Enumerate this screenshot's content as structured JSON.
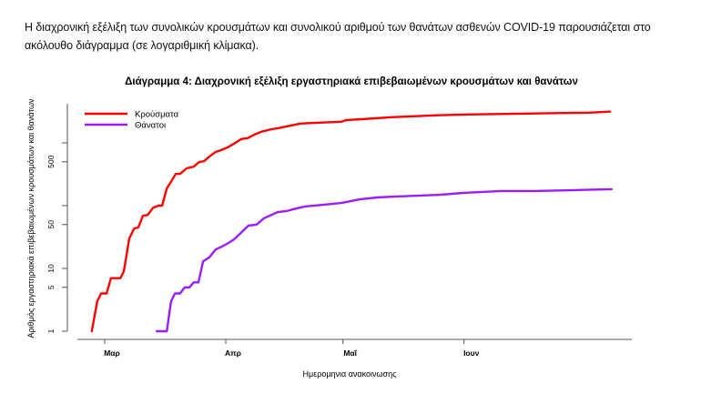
{
  "intro_text": "Η διαχρονική εξέλιξη των συνολικών κρουσμάτων και συνολικού αριθμού των θανάτων ασθενών COVID-19 παρουσιάζεται στο ακόλουθο διάγραμμα (σε λογαριθμική κλίμακα).",
  "chart_data": {
    "type": "line",
    "title": "Διάγραμμα 4: Διαχρονική εξέλιξη εργαστηριακά επιβεβαιωμένων κρουσμάτων και θανάτων",
    "xlabel": "Ημερομηνια ανακοινωσης",
    "ylabel": "Αριθμός εργαστηριακά επιβεβαιωμένων κρουσμάτων και θανάτων",
    "x_units": "days since 1 March",
    "yscale": "log",
    "ylim": [
      1,
      5000
    ],
    "xlim": [
      -7,
      135
    ],
    "x_ticks": [
      {
        "value": 0,
        "label": "Μαρ"
      },
      {
        "value": 31,
        "label": "Απρ"
      },
      {
        "value": 61,
        "label": "Μαΐ"
      },
      {
        "value": 92,
        "label": "Ιουν"
      }
    ],
    "y_ticks": [
      {
        "value": 1,
        "label": "1"
      },
      {
        "value": 5,
        "label": "5"
      },
      {
        "value": 10,
        "label": "10"
      },
      {
        "value": 50,
        "label": "50"
      },
      {
        "value": 100,
        "label": ""
      },
      {
        "value": 500,
        "label": "500"
      },
      {
        "value": 1000,
        "label": ""
      }
    ],
    "grid": false,
    "legend_position": "top-left",
    "series": [
      {
        "name": "Κρούσματα",
        "color": "#ff0000",
        "x": [
          -3.3,
          -1.9,
          -0.9,
          0.5,
          1.6,
          4,
          4.9,
          6.3,
          7.5,
          8.6,
          9.8,
          11,
          12.4,
          13.8,
          14.7,
          15.9,
          16.8,
          18.2,
          19.3,
          21,
          22.8,
          24.2,
          25.4,
          26.8,
          28.4,
          29.8,
          31.5,
          33.1,
          35,
          36.6,
          38.5,
          40.1,
          42.7,
          44.3,
          50.1,
          54.1,
          60.6,
          61.8,
          65.7,
          73.4,
          85.1,
          92.8,
          108.4,
          124,
          129.4
        ],
        "y": [
          1,
          3,
          4,
          4,
          7,
          7,
          9,
          30,
          43,
          45,
          69,
          71,
          93,
          100,
          100,
          188,
          230,
          320,
          320,
          393,
          418,
          495,
          510,
          604,
          716,
          765,
          848,
          971,
          1150,
          1190,
          1370,
          1500,
          1650,
          1710,
          2030,
          2090,
          2170,
          2300,
          2380,
          2560,
          2750,
          2830,
          2930,
          3030,
          3140
        ]
      },
      {
        "name": "Θάνατοι",
        "color": "#9b1cff",
        "x": [
          13.3,
          15.9,
          17,
          18,
          19.3,
          20.5,
          21.7,
          22.8,
          24,
          25.2,
          26.8,
          28.4,
          29.8,
          31.5,
          33.1,
          34.7,
          36.8,
          38.9,
          40.8,
          44.3,
          46.6,
          49,
          51.3,
          55.9,
          60.6,
          65.3,
          69.7,
          74.1,
          85.8,
          92.1,
          101.4,
          110,
          120.7,
          129.8
        ],
        "y": [
          1,
          1,
          3,
          4,
          4,
          5,
          5,
          6,
          6,
          13,
          15,
          20,
          22,
          25,
          29,
          36,
          48,
          50,
          63,
          79,
          82,
          90,
          97,
          103,
          110,
          126,
          135,
          139,
          149,
          160,
          171,
          171,
          177,
          183
        ]
      }
    ]
  }
}
